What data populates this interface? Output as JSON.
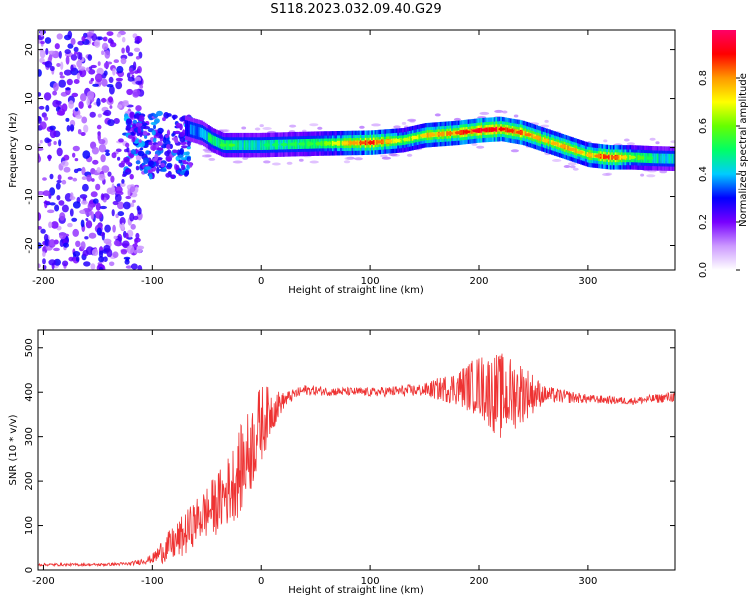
{
  "chart_data": [
    {
      "type": "heatmap",
      "title": "S118.2023.032.09.40.G29",
      "xlabel": "Height of straight line (km)",
      "ylabel": "Frequency (Hz)",
      "xlim": [
        -205,
        380
      ],
      "ylim": [
        -25,
        24
      ],
      "xticks": [
        -200,
        -100,
        0,
        100,
        200,
        300
      ],
      "yticks": [
        -20,
        -10,
        0,
        10,
        20
      ],
      "colorbar": {
        "label": "Normalized spectral amplitude",
        "range": [
          0.0,
          1.0
        ],
        "ticks": [
          0.0,
          0.2,
          0.4,
          0.6,
          0.8
        ],
        "tick_labels": [
          "0.0",
          "0.2",
          "0.4",
          "0.6",
          "0.8"
        ],
        "colors": [
          "#ffffff",
          "#cc99ff",
          "#7700ff",
          "#0000ff",
          "#00ccff",
          "#00ff66",
          "#66ff00",
          "#ffff00",
          "#ff9900",
          "#ff0000",
          "#ff0066"
        ]
      },
      "ridge": {
        "x": [
          -70,
          -55,
          -45,
          -35,
          -30,
          -20,
          0,
          50,
          100,
          130,
          150,
          180,
          200,
          220,
          240,
          260,
          280,
          300,
          320,
          340,
          360,
          380
        ],
        "freq": [
          4,
          3,
          1.5,
          0.5,
          0.5,
          0.5,
          0.5,
          0.8,
          1,
          1.5,
          2.5,
          3,
          3.5,
          3.8,
          3,
          1.5,
          0,
          -1.5,
          -2,
          -2,
          -2.2,
          -2.3
        ],
        "amplitude": [
          0.3,
          0.4,
          0.5,
          0.5,
          0.55,
          0.45,
          0.45,
          0.5,
          0.85,
          0.6,
          0.7,
          0.8,
          0.9,
          0.85,
          0.8,
          0.7,
          0.75,
          0.7,
          0.85,
          0.6,
          0.45,
          0.4
        ]
      },
      "noise_region": {
        "x": [
          -205,
          -120
        ],
        "freq": [
          -25,
          24
        ]
      },
      "xtick_labels": [
        "-200",
        "-100",
        "0",
        "100",
        "200",
        "300"
      ],
      "ytick_labels": [
        "-20",
        "-10",
        "0",
        "10",
        "20"
      ]
    },
    {
      "type": "line",
      "xlabel": "Height of straight line (km)",
      "ylabel": "SNR (10 * v/v)",
      "xlim": [
        -205,
        380
      ],
      "ylim": [
        0,
        540
      ],
      "xticks": [
        -200,
        -100,
        0,
        100,
        200,
        300
      ],
      "yticks": [
        0,
        100,
        200,
        300,
        400,
        500
      ],
      "color": "#ee3333",
      "x": [
        -205,
        -150,
        -120,
        -100,
        -90,
        -80,
        -70,
        -60,
        -50,
        -40,
        -30,
        -20,
        -10,
        0,
        10,
        20,
        30,
        40,
        60,
        100,
        150,
        180,
        200,
        220,
        240,
        260,
        300,
        340,
        380
      ],
      "y": [
        12,
        12,
        14,
        25,
        45,
        60,
        80,
        110,
        130,
        150,
        180,
        220,
        270,
        330,
        360,
        380,
        395,
        405,
        402,
        400,
        405,
        410,
        415,
        390,
        400,
        395,
        385,
        380,
        390
      ],
      "envelope": [
        3,
        3,
        4,
        10,
        30,
        40,
        50,
        50,
        60,
        70,
        80,
        100,
        100,
        90,
        50,
        20,
        12,
        12,
        10,
        10,
        15,
        40,
        70,
        100,
        70,
        20,
        10,
        8,
        12
      ],
      "xtick_labels": [
        "-200",
        "-100",
        "0",
        "100",
        "200",
        "300"
      ],
      "ytick_labels": [
        "0",
        "100",
        "200",
        "300",
        "400",
        "500"
      ]
    }
  ]
}
